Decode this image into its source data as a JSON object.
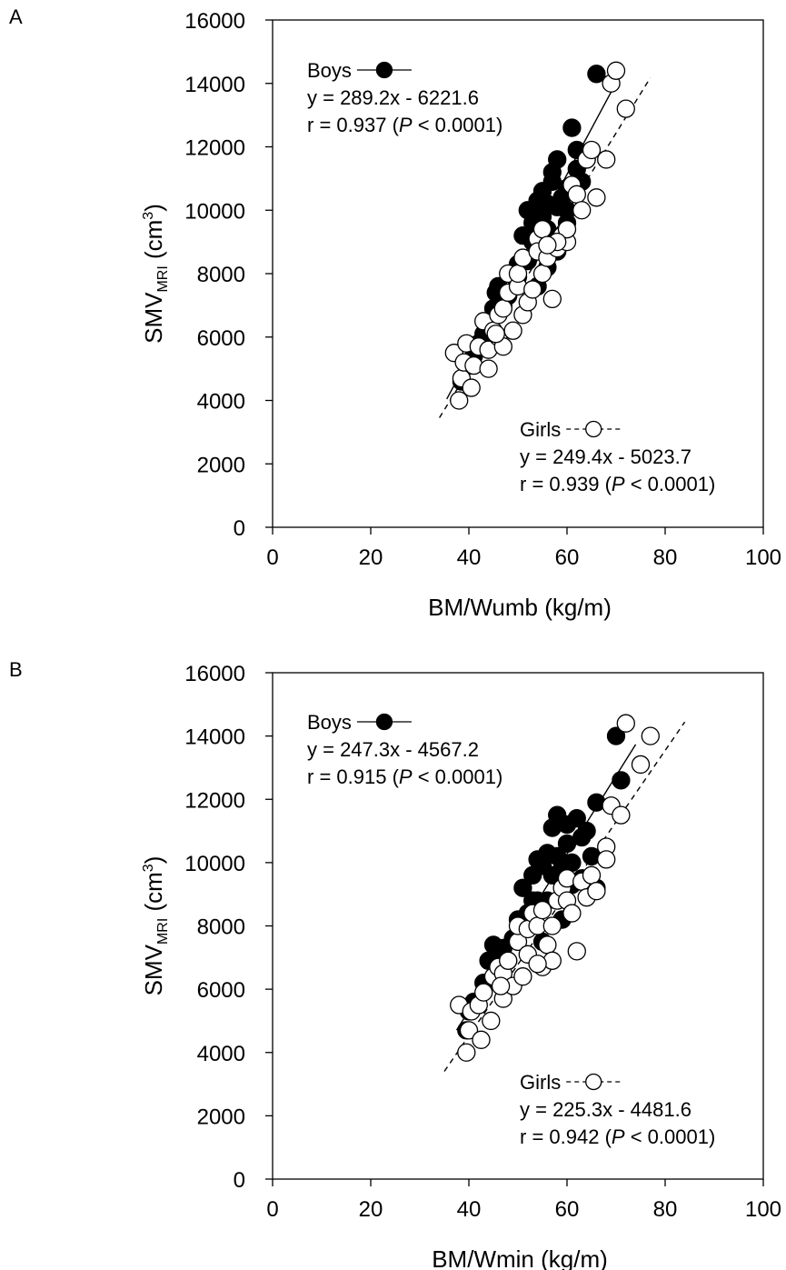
{
  "chart_data": [
    {
      "panel": "A",
      "type": "scatter",
      "xlabel": "BM/Wumb (kg/m)",
      "ylabel_main": "SMV",
      "ylabel_sub": "MRI",
      "ylabel_unit_open": " (cm",
      "ylabel_unit_sup": "3",
      "ylabel_unit_close": ")",
      "xlim": [
        0,
        100
      ],
      "ylim": [
        0,
        16000
      ],
      "x_ticks": [
        0,
        20,
        40,
        60,
        80,
        100
      ],
      "y_ticks": [
        0,
        2000,
        4000,
        6000,
        8000,
        10000,
        12000,
        14000,
        16000
      ],
      "grid": false,
      "series": [
        {
          "name": "Boys",
          "marker": "filled-circle",
          "line_style": "solid",
          "equation": "y = 289.2x - 6221.6",
          "r_prefix": "r = 0.937 (",
          "p_symbol": "P",
          "r_suffix": " < 0.0001)",
          "fit": {
            "slope": 289.2,
            "intercept": -6221.6,
            "x_range": [
              35.5,
              71
            ]
          },
          "points": [
            [
              38.5,
              4600
            ],
            [
              40,
              5100
            ],
            [
              41,
              5400
            ],
            [
              42,
              5800
            ],
            [
              43,
              6100
            ],
            [
              44,
              6400
            ],
            [
              45,
              6900
            ],
            [
              45.5,
              7400
            ],
            [
              46,
              7600
            ],
            [
              47,
              7000
            ],
            [
              48,
              7300
            ],
            [
              49,
              8000
            ],
            [
              50,
              8300
            ],
            [
              51,
              9200
            ],
            [
              52,
              8400
            ],
            [
              53,
              9000
            ],
            [
              53,
              9600
            ],
            [
              54,
              10000
            ],
            [
              54,
              10300
            ],
            [
              55,
              10600
            ],
            [
              55,
              9800
            ],
            [
              56,
              10200
            ],
            [
              56,
              9400
            ],
            [
              57,
              10900
            ],
            [
              57,
              11200
            ],
            [
              58,
              10100
            ],
            [
              58,
              11600
            ],
            [
              59,
              10400
            ],
            [
              60,
              10000
            ],
            [
              60,
              10700
            ],
            [
              61,
              12600
            ],
            [
              62,
              11900
            ],
            [
              62,
              11300
            ],
            [
              63,
              10900
            ],
            [
              64,
              11600
            ],
            [
              66,
              14300
            ],
            [
              54,
              7600
            ],
            [
              56,
              8200
            ],
            [
              58,
              8700
            ],
            [
              60,
              9600
            ],
            [
              52,
              10000
            ],
            [
              50,
              7900
            ]
          ]
        },
        {
          "name": "Girls",
          "marker": "open-circle",
          "line_style": "dashed",
          "equation": "y = 249.4x - 5023.7",
          "r_prefix": "r = 0.939 (",
          "p_symbol": "P",
          "r_suffix": " < 0.0001)",
          "fit": {
            "slope": 249.4,
            "intercept": -5023.7,
            "x_range": [
              34,
              77
            ]
          },
          "points": [
            [
              37,
              5500
            ],
            [
              38,
              4000
            ],
            [
              38.5,
              4700
            ],
            [
              39,
              5200
            ],
            [
              39.5,
              5800
            ],
            [
              40.5,
              4400
            ],
            [
              41,
              5100
            ],
            [
              42,
              5700
            ],
            [
              43,
              6500
            ],
            [
              44,
              5600
            ],
            [
              44,
              5000
            ],
            [
              45,
              6200
            ],
            [
              46,
              6000
            ],
            [
              46,
              6700
            ],
            [
              47,
              6900
            ],
            [
              47,
              5700
            ],
            [
              48,
              7400
            ],
            [
              48,
              8000
            ],
            [
              49,
              6200
            ],
            [
              50,
              7600
            ],
            [
              50,
              8000
            ],
            [
              51,
              6700
            ],
            [
              51,
              8500
            ],
            [
              52,
              7100
            ],
            [
              53,
              7500
            ],
            [
              54,
              9100
            ],
            [
              54,
              8700
            ],
            [
              55,
              8000
            ],
            [
              55,
              9400
            ],
            [
              56,
              8500
            ],
            [
              57,
              7200
            ],
            [
              58,
              8800
            ],
            [
              59,
              9200
            ],
            [
              60,
              9000
            ],
            [
              60,
              9400
            ],
            [
              61,
              10800
            ],
            [
              62,
              10500
            ],
            [
              63,
              10000
            ],
            [
              64,
              11600
            ],
            [
              65,
              11900
            ],
            [
              66,
              10400
            ],
            [
              68,
              11600
            ],
            [
              69,
              14000
            ],
            [
              70,
              14400
            ],
            [
              72,
              13200
            ],
            [
              58,
              9000
            ],
            [
              56,
              8900
            ],
            [
              45.5,
              6100
            ]
          ]
        }
      ]
    },
    {
      "panel": "B",
      "type": "scatter",
      "xlabel": "BM/Wmin (kg/m)",
      "ylabel_main": "SMV",
      "ylabel_sub": "MRI",
      "ylabel_unit_open": " (cm",
      "ylabel_unit_sup": "3",
      "ylabel_unit_close": ")",
      "xlim": [
        0,
        100
      ],
      "ylim": [
        0,
        16000
      ],
      "x_ticks": [
        0,
        20,
        40,
        60,
        80,
        100
      ],
      "y_ticks": [
        0,
        2000,
        4000,
        6000,
        8000,
        10000,
        12000,
        14000,
        16000
      ],
      "grid": false,
      "series": [
        {
          "name": "Boys",
          "marker": "filled-circle",
          "line_style": "solid",
          "equation": "y = 247.3x - 4567.2",
          "r_prefix": "r = 0.915 (",
          "p_symbol": "P",
          "r_suffix": " < 0.0001)",
          "fit": {
            "slope": 247.3,
            "intercept": -4567.2,
            "x_range": [
              37.5,
              74
            ]
          },
          "points": [
            [
              39.5,
              4700
            ],
            [
              40,
              5300
            ],
            [
              41,
              5600
            ],
            [
              43,
              6200
            ],
            [
              44,
              6900
            ],
            [
              45,
              7400
            ],
            [
              46,
              7000
            ],
            [
              47,
              7300
            ],
            [
              48,
              6900
            ],
            [
              49,
              7600
            ],
            [
              50,
              8200
            ],
            [
              51,
              9200
            ],
            [
              52,
              8400
            ],
            [
              53,
              9600
            ],
            [
              54,
              8800
            ],
            [
              54,
              10100
            ],
            [
              55,
              9900
            ],
            [
              56,
              10300
            ],
            [
              56,
              8800
            ],
            [
              57,
              11100
            ],
            [
              58,
              11500
            ],
            [
              58,
              10200
            ],
            [
              59,
              9800
            ],
            [
              60,
              10600
            ],
            [
              60,
              11200
            ],
            [
              61,
              10000
            ],
            [
              62,
              11400
            ],
            [
              63,
              10800
            ],
            [
              64,
              11000
            ],
            [
              65,
              10200
            ],
            [
              66,
              11900
            ],
            [
              70,
              14000
            ],
            [
              71,
              12600
            ],
            [
              57,
              9600
            ],
            [
              59,
              8200
            ],
            [
              61,
              9300
            ],
            [
              63,
              9500
            ],
            [
              66,
              9200
            ],
            [
              55,
              7500
            ],
            [
              53,
              8800
            ]
          ]
        },
        {
          "name": "Girls",
          "marker": "open-circle",
          "line_style": "dashed",
          "equation": "y = 225.3x - 4481.6",
          "r_prefix": "r = 0.942 (",
          "p_symbol": "P",
          "r_suffix": " < 0.0001)",
          "fit": {
            "slope": 225.3,
            "intercept": -4481.6,
            "x_range": [
              35,
              84
            ]
          },
          "points": [
            [
              38,
              5500
            ],
            [
              39.5,
              4000
            ],
            [
              40,
              4700
            ],
            [
              40.5,
              5300
            ],
            [
              42,
              5500
            ],
            [
              42.5,
              4400
            ],
            [
              43,
              5900
            ],
            [
              44.5,
              5000
            ],
            [
              45,
              6400
            ],
            [
              46,
              6700
            ],
            [
              47,
              5700
            ],
            [
              47,
              6500
            ],
            [
              48,
              6900
            ],
            [
              49,
              6100
            ],
            [
              50,
              7500
            ],
            [
              50,
              8000
            ],
            [
              51,
              6400
            ],
            [
              52,
              7900
            ],
            [
              52,
              7100
            ],
            [
              53,
              8400
            ],
            [
              54,
              8000
            ],
            [
              55,
              6700
            ],
            [
              55,
              8500
            ],
            [
              56,
              7400
            ],
            [
              57,
              8000
            ],
            [
              58,
              8800
            ],
            [
              59,
              9200
            ],
            [
              60,
              9500
            ],
            [
              60,
              8800
            ],
            [
              61,
              8400
            ],
            [
              62,
              7200
            ],
            [
              63,
              9400
            ],
            [
              64,
              8900
            ],
            [
              65,
              9600
            ],
            [
              66,
              9100
            ],
            [
              68,
              10500
            ],
            [
              68,
              10100
            ],
            [
              69,
              11800
            ],
            [
              71,
              11500
            ],
            [
              72,
              14400
            ],
            [
              75,
              13100
            ],
            [
              77,
              14000
            ],
            [
              57,
              6900
            ],
            [
              54,
              6800
            ],
            [
              46.5,
              6100
            ]
          ]
        }
      ]
    }
  ]
}
